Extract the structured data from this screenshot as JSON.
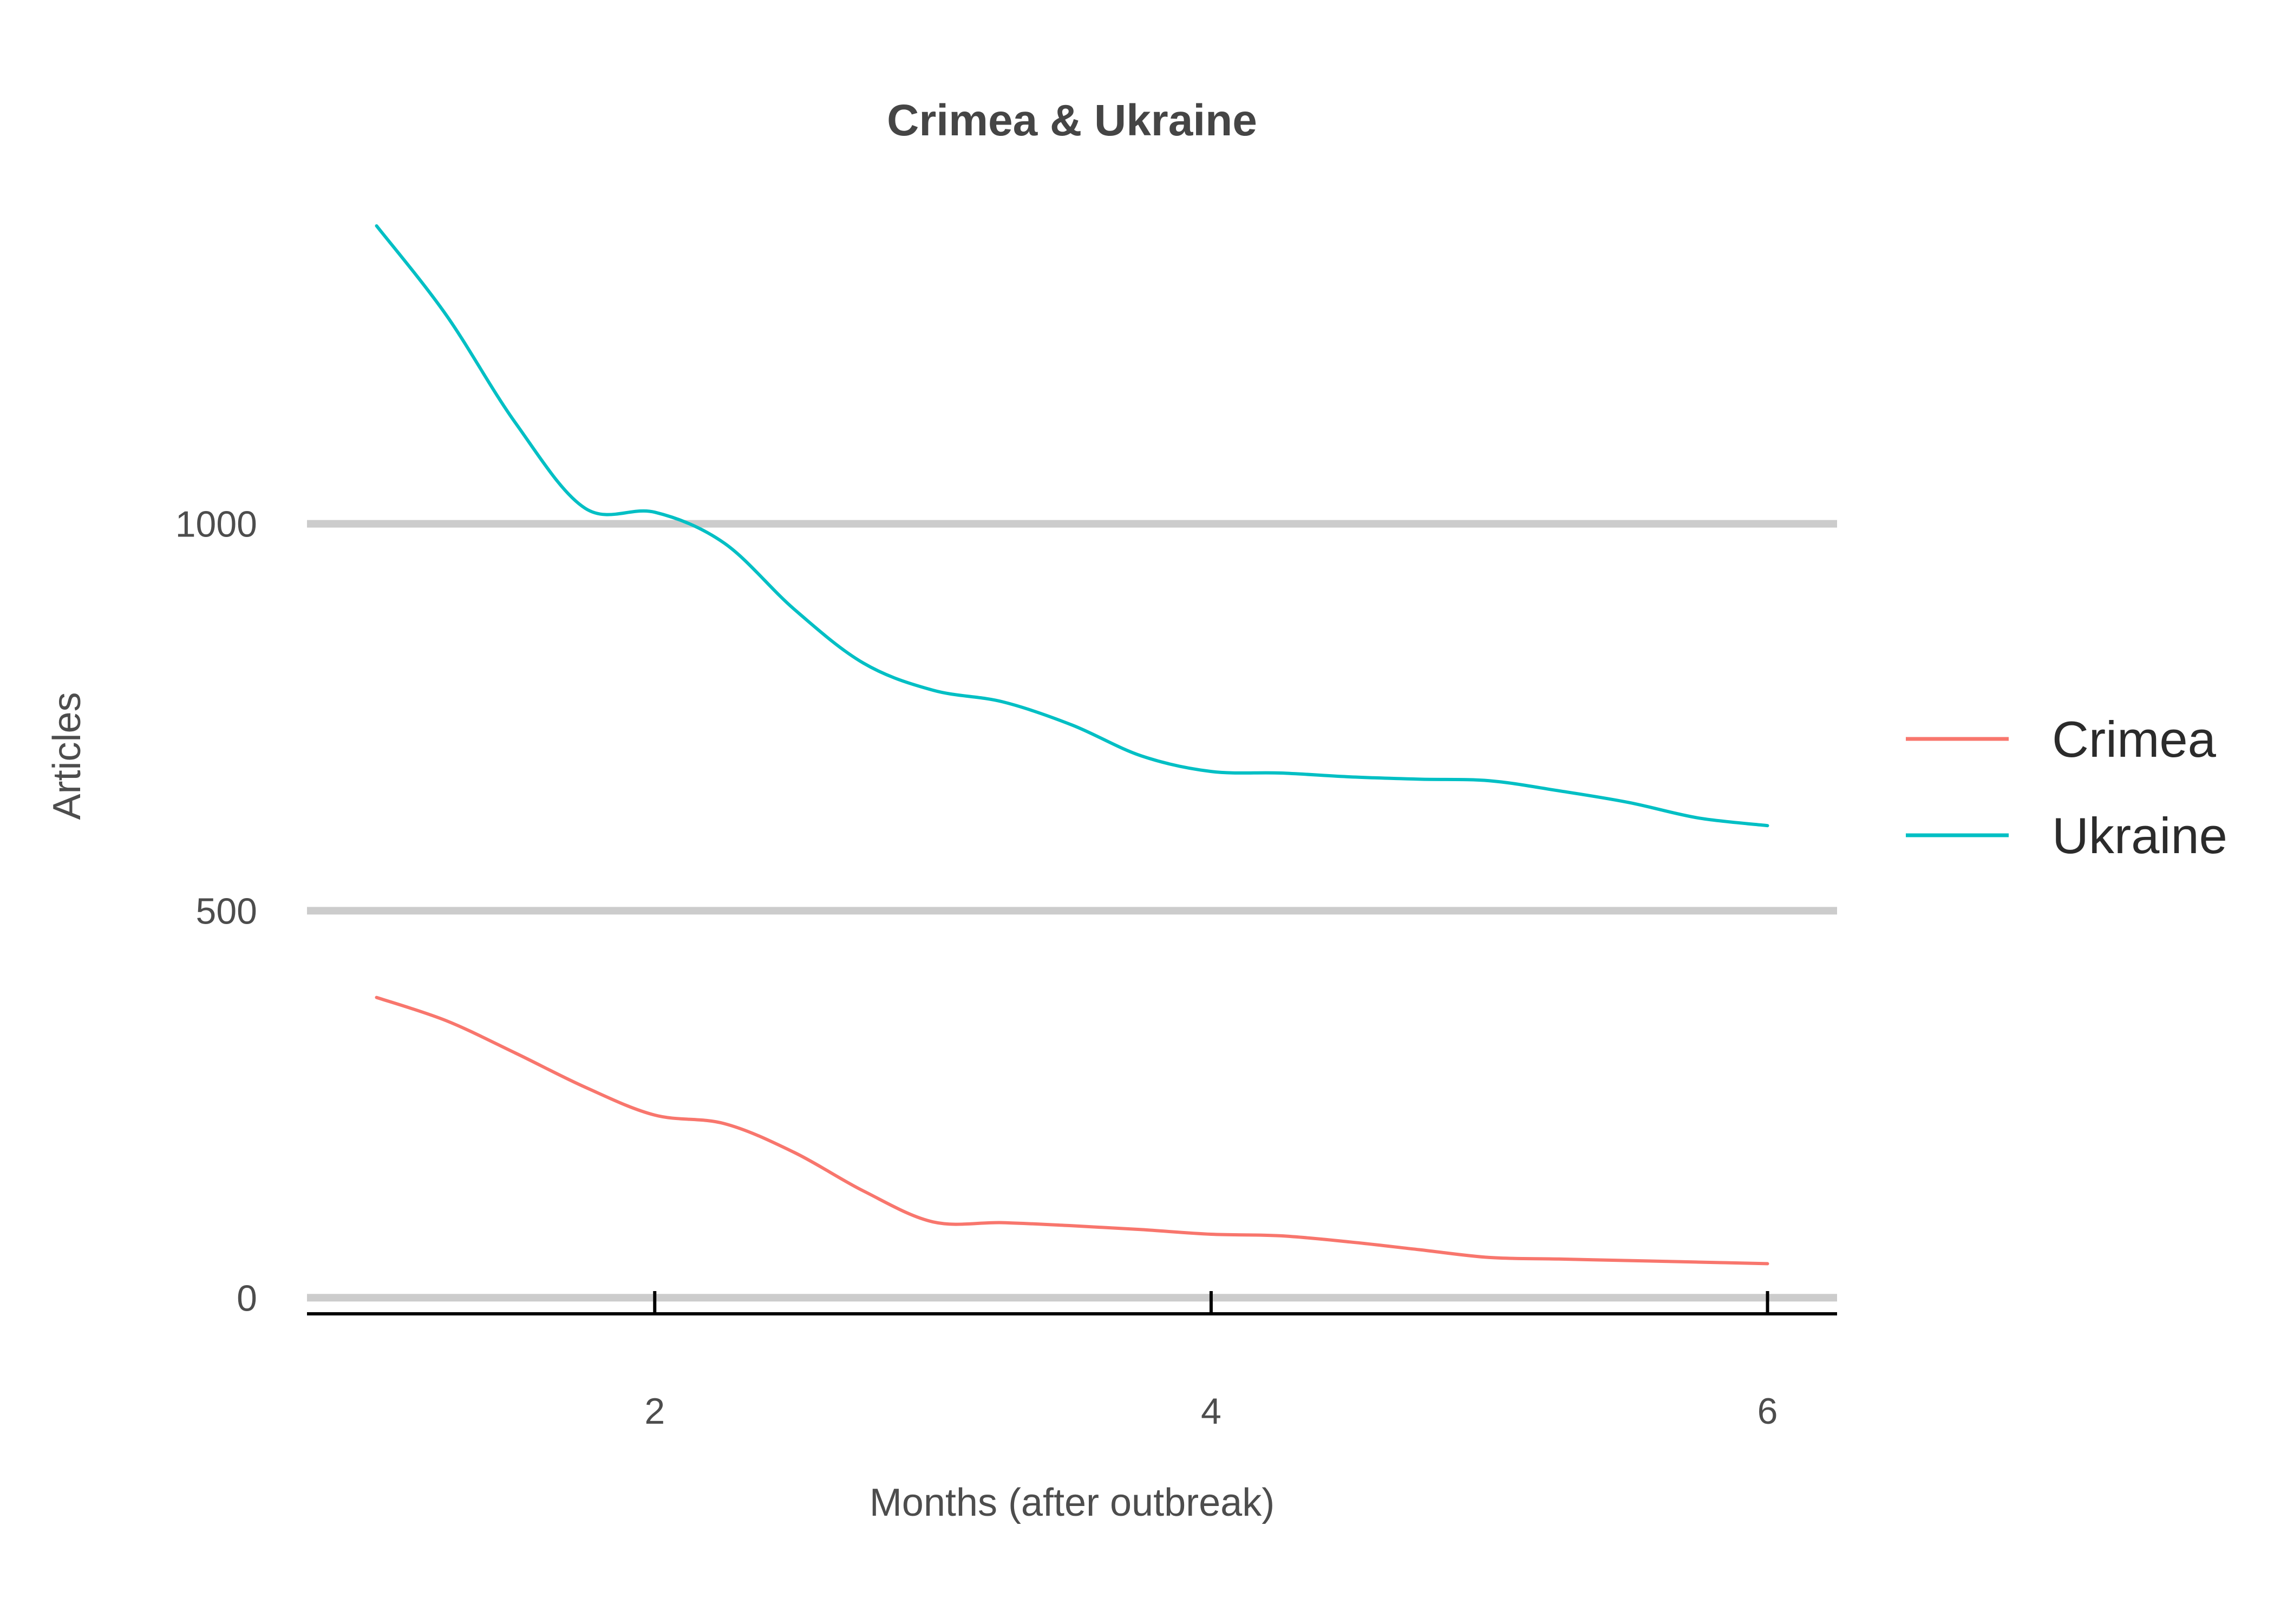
{
  "chart_data": {
    "type": "line",
    "title": "Crimea & Ukraine",
    "xlabel": "Months (after outbreak)",
    "ylabel": "Articles",
    "x_ticks": [
      2,
      4,
      6
    ],
    "y_ticks": [
      0,
      500,
      1000
    ],
    "xlim": [
      0.75,
      6.25
    ],
    "ylim": [
      -25,
      1425
    ],
    "grid": "horizontal-major",
    "legend_position": "right",
    "series": [
      {
        "name": "Crimea",
        "color": "#f8766d",
        "x": [
          1.0,
          1.25,
          1.5,
          1.75,
          2.0,
          2.25,
          2.5,
          2.75,
          3.0,
          3.25,
          3.5,
          3.75,
          4.0,
          4.25,
          4.5,
          4.75,
          5.0,
          5.25,
          5.5,
          5.75,
          6.0
        ],
        "y": [
          388,
          358,
          316,
          272,
          236,
          225,
          188,
          138,
          98,
          97,
          93,
          88,
          82,
          80,
          72,
          62,
          52,
          50,
          48,
          46,
          44
        ]
      },
      {
        "name": "Ukraine",
        "color": "#00bfc4",
        "x": [
          1.0,
          1.25,
          1.5,
          1.75,
          2.0,
          2.25,
          2.5,
          2.75,
          3.0,
          3.25,
          3.5,
          3.75,
          4.0,
          4.25,
          4.5,
          4.75,
          5.0,
          5.25,
          5.5,
          5.75,
          6.0
        ],
        "y": [
          1385,
          1270,
          1130,
          1020,
          1015,
          975,
          890,
          820,
          785,
          770,
          740,
          700,
          680,
          678,
          673,
          670,
          668,
          655,
          640,
          620,
          610
        ]
      }
    ]
  }
}
